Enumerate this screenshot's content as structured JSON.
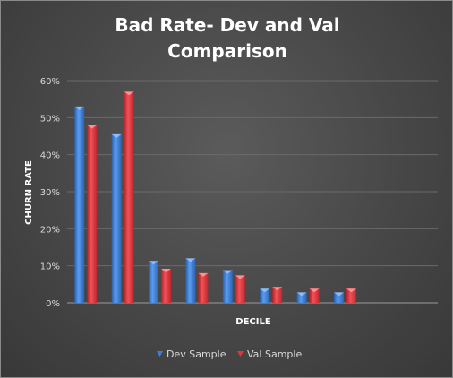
{
  "chart_data": {
    "type": "bar",
    "title_lines": [
      "Bad Rate- Dev and Val",
      "Comparison"
    ],
    "xlabel": "DECILE",
    "ylabel": "CHURN RATE",
    "ylim": [
      0,
      0.6
    ],
    "yticks": [
      "0%",
      "10%",
      "20%",
      "30%",
      "40%",
      "50%",
      "60%"
    ],
    "grid": true,
    "legend_position": "bottom",
    "slots": 10,
    "series": [
      {
        "name": "Dev Sample",
        "color": "#3f7fd6",
        "values": [
          0.53,
          0.455,
          0.113,
          0.12,
          0.088,
          0.038,
          0.028,
          0.028
        ]
      },
      {
        "name": "Val Sample",
        "color": "#e0353b",
        "values": [
          0.48,
          0.57,
          0.092,
          0.08,
          0.074,
          0.043,
          0.038,
          0.038
        ]
      }
    ]
  }
}
